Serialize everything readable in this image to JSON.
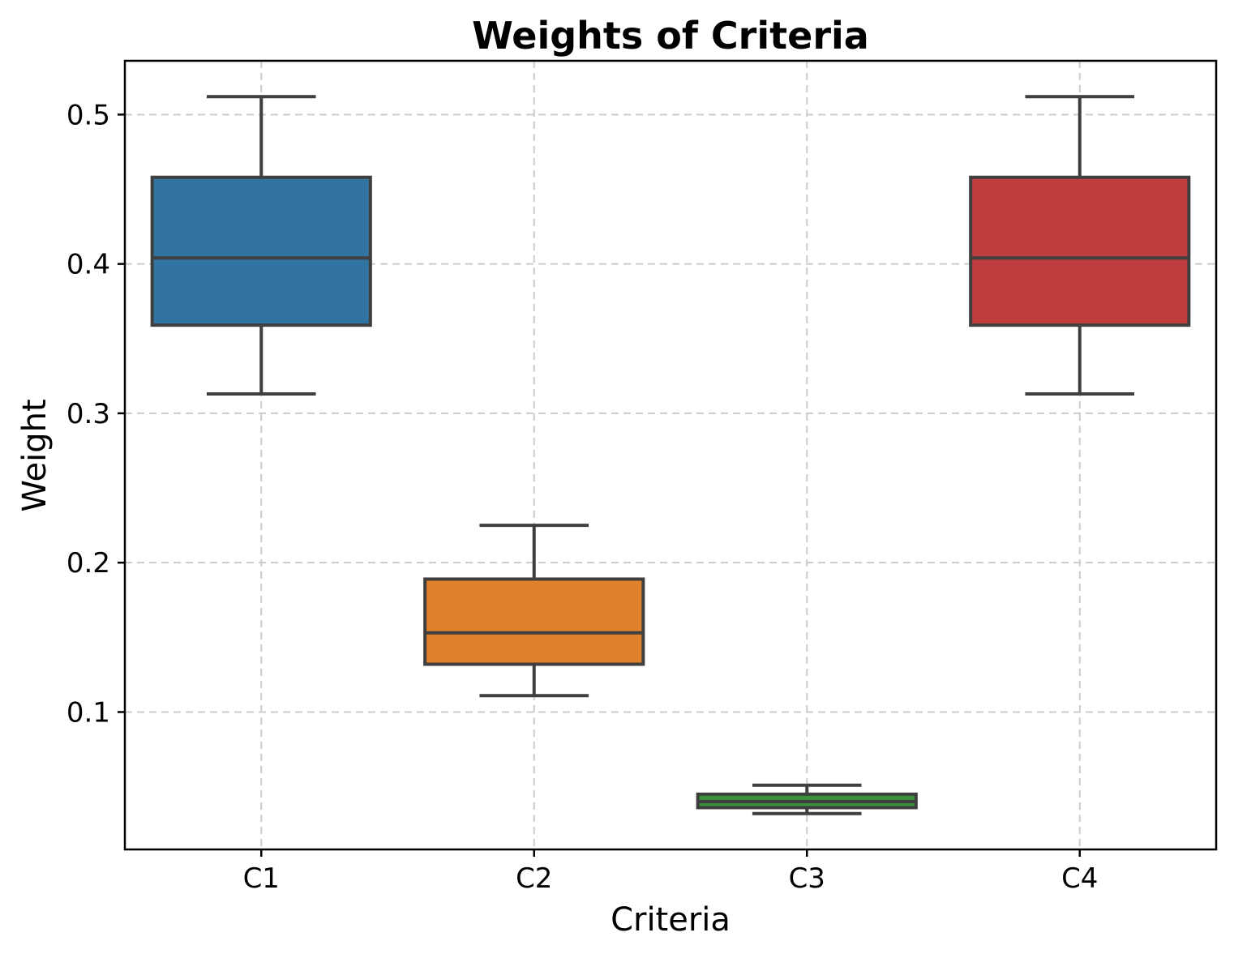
{
  "chart_data": {
    "type": "box",
    "title": "Weights of Criteria",
    "xlabel": "Criteria",
    "ylabel": "Weight",
    "categories": [
      "C1",
      "C2",
      "C3",
      "C4"
    ],
    "ylim": [
      0.008,
      0.536
    ],
    "yticks": [
      0.1,
      0.2,
      0.3,
      0.4,
      0.5
    ],
    "ytick_labels": [
      "0.1",
      "0.2",
      "0.3",
      "0.4",
      "0.5"
    ],
    "grid": true,
    "boxes": [
      {
        "category": "C1",
        "whislo": 0.313,
        "q1": 0.359,
        "med": 0.404,
        "q3": 0.458,
        "whishi": 0.512,
        "color": "#3274a1"
      },
      {
        "category": "C2",
        "whislo": 0.111,
        "q1": 0.132,
        "med": 0.153,
        "q3": 0.189,
        "whishi": 0.225,
        "color": "#e1812c"
      },
      {
        "category": "C3",
        "whislo": 0.032,
        "q1": 0.036,
        "med": 0.04,
        "q3": 0.045,
        "whishi": 0.051,
        "color": "#3a923a"
      },
      {
        "category": "C4",
        "whislo": 0.313,
        "q1": 0.359,
        "med": 0.404,
        "q3": 0.458,
        "whishi": 0.512,
        "color": "#c03d3e"
      }
    ]
  }
}
